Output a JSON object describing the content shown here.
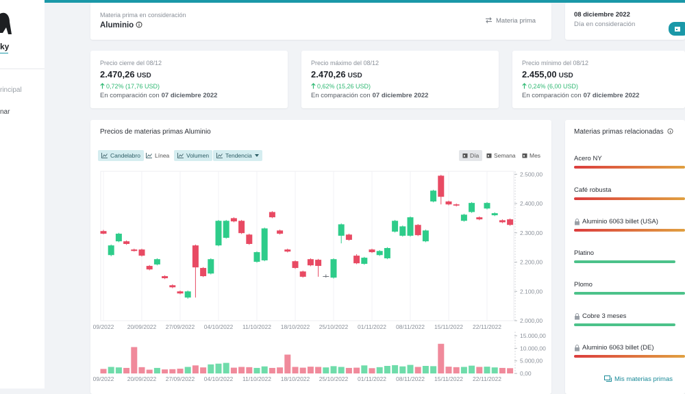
{
  "sidebar": {
    "brand": "ky",
    "nav": [
      "rincipal",
      "nar"
    ]
  },
  "header": {
    "label": "Materia prima en consideración",
    "commodity": "Aluminio",
    "button": "Materia prima"
  },
  "date_card": {
    "date": "08 diciembre 2022",
    "caption": "Día en consideración"
  },
  "stats": [
    {
      "label": "Precio cierre del 08/12",
      "value": "2.470,26",
      "unit": "USD",
      "change": "0,72% (17,76 USD)",
      "comparison": "En comparación con",
      "compare_date": "07 diciembre 2022"
    },
    {
      "label": "Precio máximo del 08/12",
      "value": "2.470,26",
      "unit": "USD",
      "change": "0,62% (15,26 USD)",
      "comparison": "En comparación con",
      "compare_date": "07 diciembre 2022"
    },
    {
      "label": "Precio mínimo del 08/12",
      "value": "2.455,00",
      "unit": "USD",
      "change": "0,24% (6,00 USD)",
      "comparison": "En comparación con",
      "compare_date": "07 diciembre 2022"
    }
  ],
  "toolbar": {
    "chart_types": [
      "Candelabro",
      "Línea",
      "Volumen",
      "Tendencia"
    ],
    "periods": [
      "Día",
      "Semana",
      "Mes"
    ]
  },
  "chart_data": {
    "type": "candlestick",
    "title": "Precios de materias primas Aluminio",
    "categories": [
      "09/2022",
      null,
      null,
      null,
      null,
      "20/09/2022",
      null,
      null,
      null,
      null,
      "27/09/2022",
      null,
      null,
      null,
      null,
      "04/10/2022",
      null,
      null,
      null,
      null,
      "11/10/2022",
      null,
      null,
      null,
      null,
      "18/10/2022",
      null,
      null,
      null,
      null,
      "25/10/2022",
      null,
      null,
      null,
      null,
      "01/11/2022",
      null,
      null,
      null,
      null,
      "08/11/2022",
      null,
      null,
      null,
      null,
      "15/11/2022",
      null,
      null,
      null,
      null,
      "22/11/2022",
      null,
      null,
      null
    ],
    "open": [
      2306,
      2224,
      2271,
      2271,
      2243,
      2243,
      2187,
      2192,
      2152,
      2121,
      2100,
      2079,
      2257,
      2180,
      2161,
      2257,
      2283,
      2350,
      2341,
      2294,
      2201,
      2206,
      2371,
      2308,
      2243,
      2203,
      2168,
      2210,
      2208,
      2152,
      2147,
      2290,
      2294,
      2222,
      2194,
      2243,
      2224,
      2213,
      2304,
      2290,
      2290,
      2327,
      2271,
      2407,
      2495,
      2407,
      2397,
      2341,
      2371,
      2353,
      2383,
      2360,
      2343,
      2346
    ],
    "high": [
      2310,
      2260,
      2300,
      2274,
      2246,
      2246,
      2190,
      2213,
      2155,
      2124,
      2103,
      2103,
      2260,
      2183,
      2213,
      2344,
      2344,
      2353,
      2344,
      2297,
      2237,
      2318,
      2374,
      2311,
      2246,
      2206,
      2171,
      2213,
      2211,
      2158,
      2213,
      2332,
      2297,
      2227,
      2218,
      2246,
      2241,
      2251,
      2344,
      2325,
      2356,
      2330,
      2311,
      2447,
      2498,
      2410,
      2400,
      2365,
      2405,
      2356,
      2405,
      2370,
      2346,
      2349
    ],
    "low": [
      2295,
      2220,
      2268,
      2259,
      2236,
      2219,
      2172,
      2189,
      2142,
      2111,
      2090,
      2075,
      2079,
      2149,
      2158,
      2254,
      2280,
      2336,
      2296,
      2259,
      2198,
      2203,
      2350,
      2294,
      2233,
      2177,
      2147,
      2186,
      2150,
      2147,
      2144,
      2264,
      2273,
      2193,
      2191,
      2231,
      2221,
      2210,
      2301,
      2287,
      2287,
      2289,
      2268,
      2404,
      2397,
      2394,
      2390,
      2338,
      2368,
      2343,
      2380,
      2357,
      2333,
      2324
    ],
    "close": [
      2297,
      2257,
      2297,
      2262,
      2238,
      2222,
      2175,
      2210,
      2145,
      2114,
      2093,
      2100,
      2182,
      2152,
      2210,
      2341,
      2341,
      2339,
      2299,
      2262,
      2234,
      2315,
      2353,
      2297,
      2236,
      2180,
      2150,
      2189,
      2187,
      2152,
      2210,
      2329,
      2276,
      2196,
      2215,
      2234,
      2238,
      2248,
      2341,
      2322,
      2353,
      2292,
      2308,
      2444,
      2423,
      2397,
      2393,
      2362,
      2402,
      2346,
      2402,
      2367,
      2336,
      2327
    ],
    "volume": [
      1800,
      2600,
      2400,
      2200,
      10500,
      2500,
      1500,
      2200,
      1600,
      1700,
      1900,
      2600,
      3200,
      2400,
      3600,
      3900,
      4200,
      2300,
      2600,
      2500,
      2200,
      2800,
      2200,
      2400,
      7500,
      2600,
      2300,
      2700,
      2600,
      2400,
      2900,
      2600,
      2200,
      2300,
      3200,
      2100,
      2500,
      3000,
      3300,
      2800,
      3400,
      2600,
      3000,
      2900,
      11800,
      2700,
      2500,
      2600,
      3100,
      2600,
      2700,
      2400,
      2200,
      2100
    ],
    "up_color": "#2ecc8a",
    "down_color": "#e84a63",
    "flat_color": "#6b7078",
    "volume_up_color": "#6fdcaa",
    "volume_down_color": "#f08a9b",
    "ylim": [
      2000,
      2510
    ],
    "yticks": [
      {
        "value": 2000,
        "label": "2.000,00"
      },
      {
        "value": 2100,
        "label": "2.100,00"
      },
      {
        "value": 2200,
        "label": "2.200,00"
      },
      {
        "value": 2300,
        "label": "2.300,00"
      },
      {
        "value": 2400,
        "label": "2.400,00"
      },
      {
        "value": 2500,
        "label": "2.500,00"
      }
    ],
    "volume_ylim": [
      0,
      15000
    ],
    "volume_yticks": [
      {
        "value": 0,
        "label": "0,00"
      },
      {
        "value": 5000,
        "label": "5.000,00"
      },
      {
        "value": 10000,
        "label": "10.000,00"
      },
      {
        "value": 15000,
        "label": "15.000,00"
      }
    ]
  },
  "related": {
    "title": "Materias primas relacionadas",
    "items": [
      "Acero NY",
      "Café robusta",
      "Aluminio 6063 billet (USA)",
      "Platino",
      "Plomo",
      "Cobre 3 meses",
      "Aluminio 6063 billet (DE)"
    ],
    "link": "Mis materias primas"
  }
}
